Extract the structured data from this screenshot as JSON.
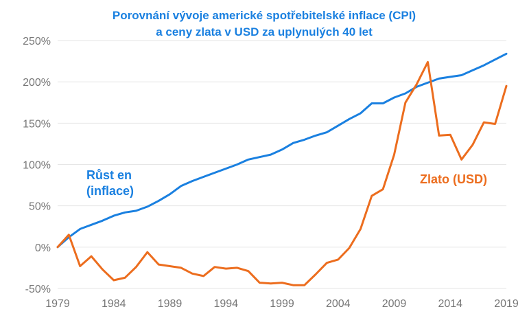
{
  "chart_data": {
    "type": "line",
    "title_lines": [
      "Porovnání vývoje americké spotřebitelské inflace (CPI)",
      "a ceny zlata v USD za uplynulých 40 let"
    ],
    "xlabel": "",
    "ylabel": "",
    "ylim": [
      -50,
      250
    ],
    "xlim": [
      1979,
      2019
    ],
    "y_ticks": [
      -50,
      0,
      50,
      100,
      150,
      200,
      250
    ],
    "y_tick_labels": [
      "-50%",
      "0%",
      "50%",
      "100%",
      "150%",
      "200%",
      "250%"
    ],
    "x_ticks": [
      1979,
      1984,
      1989,
      1994,
      1999,
      2004,
      2009,
      2014,
      2019
    ],
    "x_tick_labels": [
      "1979",
      "1984",
      "1989",
      "1994",
      "1999",
      "2004",
      "2009",
      "2014",
      "2019"
    ],
    "grid": true,
    "legend": "none",
    "x": [
      1979,
      1980,
      1981,
      1982,
      1983,
      1984,
      1985,
      1986,
      1987,
      1988,
      1989,
      1990,
      1991,
      1992,
      1993,
      1994,
      1995,
      1996,
      1997,
      1998,
      1999,
      2000,
      2001,
      2002,
      2003,
      2004,
      2005,
      2006,
      2007,
      2008,
      2009,
      2010,
      2011,
      2012,
      2013,
      2014,
      2015,
      2016,
      2017,
      2018,
      2019
    ],
    "series": [
      {
        "name": "CPI",
        "label_lines": [
          "Růst en",
          "(inflace)"
        ],
        "color": "#1a80e0",
        "values": [
          0,
          12,
          22,
          27,
          32,
          38,
          42,
          44,
          49,
          56,
          64,
          74,
          80,
          85,
          90,
          95,
          100,
          106,
          109,
          112,
          118,
          126,
          130,
          135,
          139,
          147,
          155,
          162,
          174,
          174,
          181,
          186,
          194,
          199,
          204,
          206,
          208,
          214,
          220,
          227,
          234
        ]
      },
      {
        "name": "Zlato (USD)",
        "label_lines": [
          "Zlato (USD)"
        ],
        "color": "#ec6d1e",
        "values": [
          0,
          15,
          -23,
          -11,
          -27,
          -40,
          -37,
          -24,
          -6,
          -21,
          -23,
          -25,
          -32,
          -35,
          -24,
          -26,
          -25,
          -29,
          -43,
          -44,
          -43,
          -46,
          -46,
          -33,
          -19,
          -15,
          -1,
          22,
          62,
          70,
          112,
          175,
          197,
          224,
          135,
          136,
          106,
          124,
          151,
          149,
          195
        ]
      }
    ]
  }
}
